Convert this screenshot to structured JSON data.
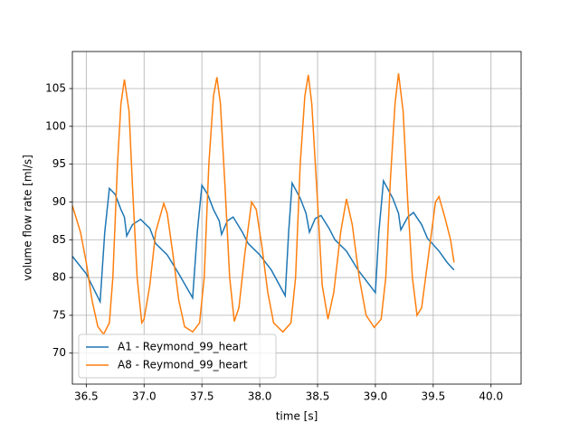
{
  "chart_data": {
    "type": "line",
    "xlabel": "time [s]",
    "ylabel": "volume flow rate [ml/s]",
    "xlim": [
      36.38,
      40.26
    ],
    "ylim": [
      65.9,
      109.9
    ],
    "xticks": [
      36.5,
      {
        "value": 37.0,
        "label": "37.0"
      },
      37.5,
      {
        "value": 38.0,
        "label": "38.0"
      },
      38.5,
      {
        "value": 39.0,
        "label": "39.0"
      },
      39.5,
      {
        "value": 40.0,
        "label": "40.0"
      }
    ],
    "yticks": [
      70,
      75,
      80,
      85,
      90,
      95,
      100,
      105
    ],
    "grid": true,
    "legend": "lower left",
    "series": [
      {
        "name": "A1 - Reymond_99_heart",
        "color": "#1f77b4",
        "x": [
          36.38,
          36.5,
          36.62,
          36.66,
          36.7,
          36.75,
          36.8,
          36.83,
          36.85,
          36.9,
          36.97,
          37.05,
          37.1,
          37.2,
          37.3,
          37.42,
          37.46,
          37.5,
          37.55,
          37.6,
          37.65,
          37.67,
          37.72,
          37.77,
          37.85,
          37.9,
          38.0,
          38.1,
          38.22,
          38.25,
          38.28,
          38.35,
          38.4,
          38.43,
          38.48,
          38.53,
          38.6,
          38.65,
          38.75,
          38.85,
          39.0,
          39.03,
          39.07,
          39.15,
          39.2,
          39.22,
          39.28,
          39.33,
          39.4,
          39.45,
          39.55,
          39.62,
          39.68
        ],
        "values": [
          82.8,
          80.5,
          76.8,
          86,
          91.8,
          91,
          89,
          88,
          85.5,
          87,
          87.7,
          86.5,
          84.5,
          83,
          80.5,
          77.3,
          86,
          92.2,
          91,
          89,
          87.5,
          85.7,
          87.5,
          88,
          86,
          84.5,
          83,
          81,
          77.6,
          86,
          92.5,
          90.5,
          88.5,
          86,
          87.8,
          88.2,
          86.5,
          85,
          83.5,
          81,
          78,
          86,
          92.8,
          90.5,
          88.5,
          86.3,
          88,
          88.6,
          87,
          85.2,
          83.5,
          82,
          81
        ]
      },
      {
        "name": "A8 - Reymond_99_heart",
        "color": "#ff7f0e",
        "x": [
          36.38,
          36.45,
          36.5,
          36.55,
          36.6,
          36.65,
          36.7,
          36.73,
          36.77,
          36.8,
          36.83,
          36.87,
          36.9,
          36.94,
          36.98,
          37.0,
          37.05,
          37.1,
          37.17,
          37.2,
          37.25,
          37.3,
          37.35,
          37.42,
          37.48,
          37.52,
          37.56,
          37.6,
          37.63,
          37.66,
          37.7,
          37.74,
          37.78,
          37.82,
          37.87,
          37.93,
          37.97,
          38.02,
          38.07,
          38.12,
          38.2,
          38.27,
          38.31,
          38.35,
          38.39,
          38.42,
          38.45,
          38.5,
          38.54,
          38.59,
          38.64,
          38.7,
          38.75,
          38.8,
          38.86,
          38.92,
          38.99,
          39.05,
          39.09,
          39.13,
          39.17,
          39.2,
          39.24,
          39.28,
          39.32,
          39.36,
          39.4,
          39.46,
          39.52,
          39.55,
          39.6,
          39.65,
          39.68
        ],
        "values": [
          89.5,
          86,
          82,
          77,
          73.5,
          72.5,
          74,
          80,
          95,
          103,
          106.2,
          102,
          92,
          80,
          74,
          74.5,
          79,
          86,
          89.8,
          88.5,
          83,
          77,
          73.5,
          72.8,
          74,
          80,
          95,
          104,
          106.5,
          103,
          92,
          80,
          74.2,
          76,
          83,
          90,
          89,
          84,
          78,
          74,
          72.8,
          74,
          80,
          95,
          104,
          106.8,
          103,
          90,
          79,
          74.5,
          78,
          86,
          90.4,
          87,
          80,
          75,
          73.4,
          74.5,
          80,
          93,
          103,
          107,
          102,
          90,
          80,
          75,
          76,
          83,
          90,
          90.7,
          88,
          85,
          82
        ]
      }
    ]
  }
}
